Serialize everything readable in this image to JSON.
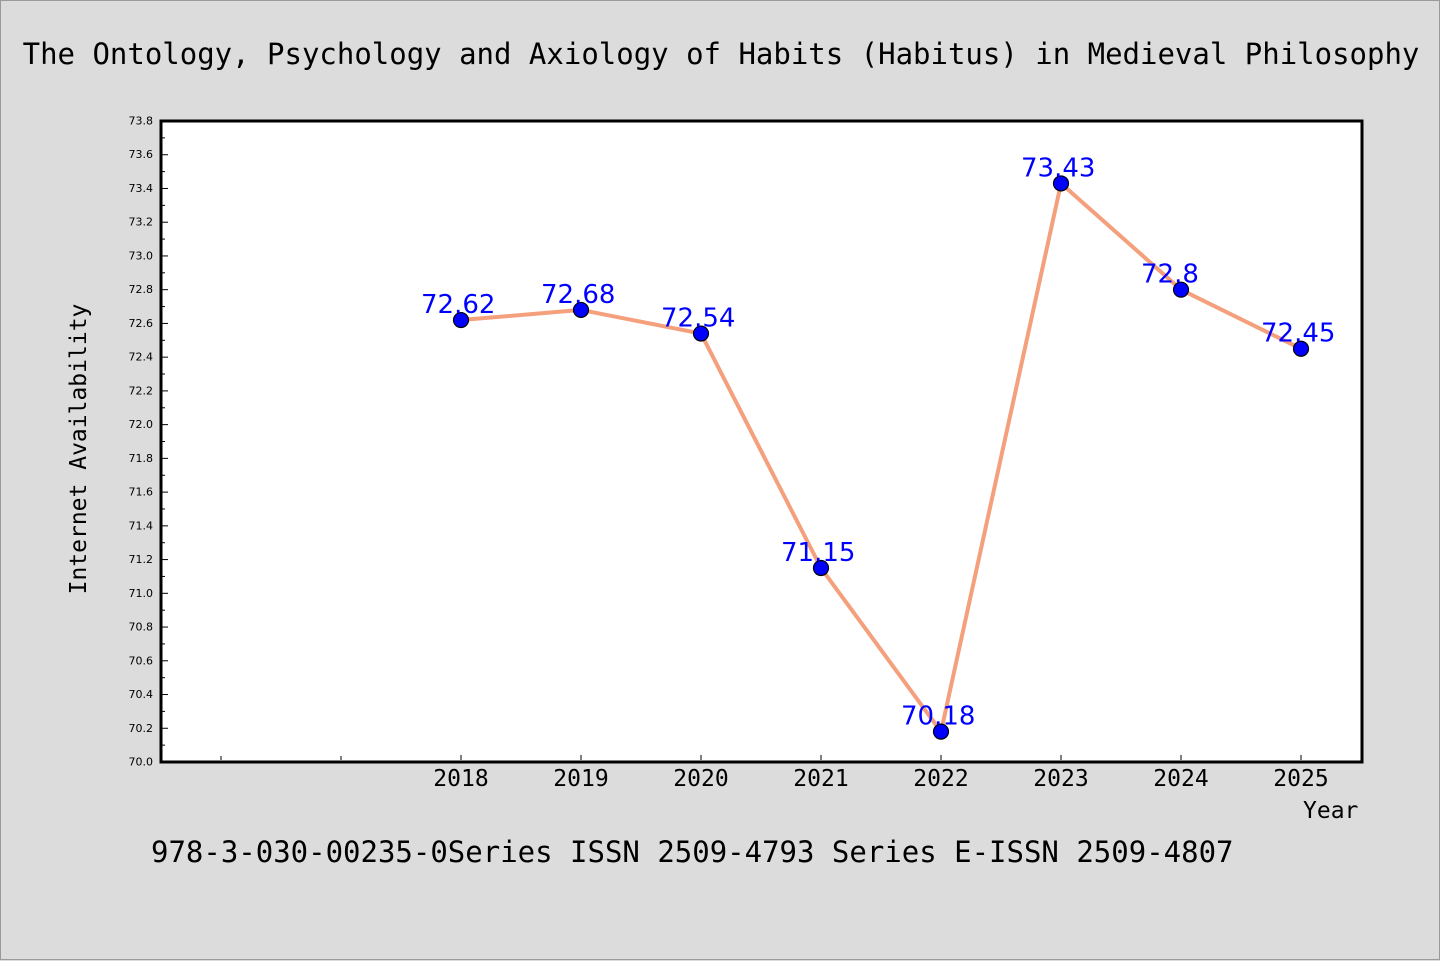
{
  "chart_data": {
    "type": "line",
    "title": "The Ontology, Psychology and Axiology of Habits (Habitus) in Medieval Philosophy",
    "xlabel": "Year",
    "ylabel": "Internet Availability",
    "footer": "978-3-030-00235-0Series ISSN 2509-4793 Series E-ISSN 2509-4807",
    "x": [
      "2018",
      "2019",
      "2020",
      "2021",
      "2022",
      "2023",
      "2024",
      "2025"
    ],
    "series": [
      {
        "values": [
          72.62,
          72.68,
          72.54,
          71.15,
          70.18,
          73.43,
          72.8,
          72.45
        ],
        "labels": [
          "72.62",
          "72.68",
          "72.54",
          "71.15",
          "70.18",
          "73.43",
          "72.8",
          "72.45"
        ]
      }
    ],
    "ylim": [
      70.0,
      73.8
    ],
    "yticks": [
      "70.0",
      "70.2",
      "70.4",
      "70.6",
      "70.8",
      "71.0",
      "71.2",
      "71.4",
      "71.6",
      "71.8",
      "72.0",
      "72.2",
      "72.4",
      "72.6",
      "72.8",
      "73.0",
      "73.2",
      "73.4",
      "73.6",
      "73.8"
    ],
    "grid": false,
    "legend": "none",
    "colors": {
      "line": "#f4a07c",
      "marker": "#0000ff",
      "data_label": "#0000ff",
      "background": "#dcdcdc",
      "plot_background": "#ffffff"
    }
  }
}
